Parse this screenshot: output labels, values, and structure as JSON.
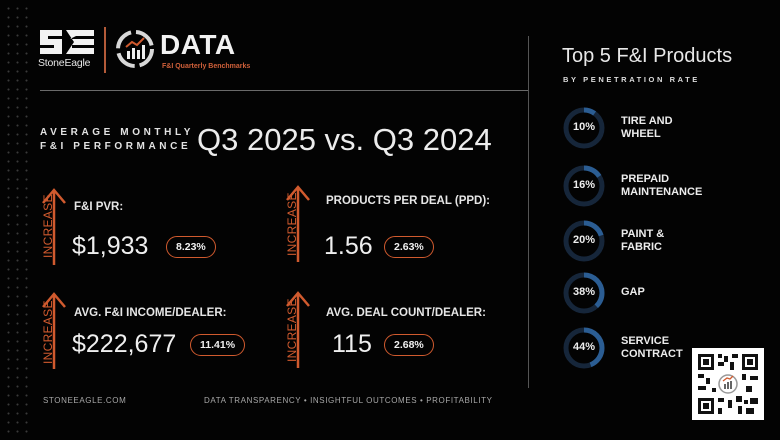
{
  "brand": {
    "company": "StoneEagle",
    "product": "DATA",
    "tagline": "F&I Quarterly Benchmarks",
    "accent_color": "#d05a2e",
    "ring_color": "#2b5d93"
  },
  "header": {
    "sub_line1": "AVERAGE MONTHLY",
    "sub_line2": "F&I PERFORMANCE",
    "title": "Q3 2025 vs. Q3 2024"
  },
  "metrics": [
    {
      "direction": "INCREASE",
      "label": "F&I PVR:",
      "value": "$1,933",
      "change": "8.23%"
    },
    {
      "direction": "INCREASE",
      "label": "PRODUCTS PER DEAL (PPD):",
      "value": "1.56",
      "change": "2.63%"
    },
    {
      "direction": "INCREASE",
      "label": "AVG. F&I INCOME/DEALER:",
      "value": "$222,677",
      "change": "11.41%"
    },
    {
      "direction": "INCREASE",
      "label": "AVG. DEAL COUNT/DEALER:",
      "value": "115",
      "change": "2.68%"
    }
  ],
  "top_products": {
    "title": "Top 5 F&I Products",
    "subtitle": "BY PENETRATION RATE",
    "items": [
      {
        "pct_label": "10%",
        "pct": 10,
        "line1": "TIRE AND",
        "line2": "WHEEL"
      },
      {
        "pct_label": "16%",
        "pct": 16,
        "line1": "PREPAID",
        "line2": "MAINTENANCE"
      },
      {
        "pct_label": "20%",
        "pct": 20,
        "line1": "PAINT &",
        "line2": "FABRIC"
      },
      {
        "pct_label": "38%",
        "pct": 38,
        "line1": "GAP",
        "line2": ""
      },
      {
        "pct_label": "44%",
        "pct": 44,
        "line1": "SERVICE",
        "line2": "CONTRACT"
      }
    ]
  },
  "footer": {
    "website": "STONEEAGLE.COM",
    "values": "DATA TRANSPARENCY • INSIGHTFUL OUTCOMES • PROFITABILITY"
  }
}
